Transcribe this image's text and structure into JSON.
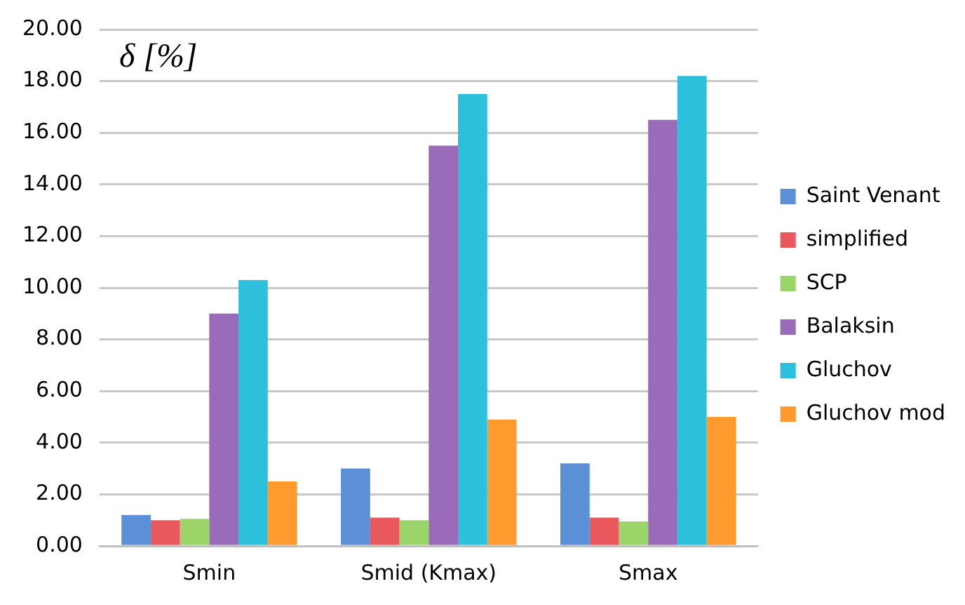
{
  "chart_data": {
    "type": "bar",
    "ylabel": "δ [%]",
    "categories": [
      "Smin",
      "Smid (Kmax)",
      "Smax"
    ],
    "series": [
      {
        "name": "Saint Venant",
        "color": "#5b8fd6",
        "values": [
          1.2,
          3.0,
          3.2
        ]
      },
      {
        "name": "simplified",
        "color": "#e8585c",
        "values": [
          1.0,
          1.1,
          1.1
        ]
      },
      {
        "name": "SCP",
        "color": "#9bd56a",
        "values": [
          1.05,
          1.0,
          0.95
        ]
      },
      {
        "name": "Balaksin",
        "color": "#9a6bb8",
        "values": [
          9.0,
          15.5,
          16.5
        ]
      },
      {
        "name": "Gluchov",
        "color": "#2cc0dd",
        "values": [
          10.3,
          17.5,
          18.2
        ]
      },
      {
        "name": "Gluchov mod",
        "color": "#ff9a2e",
        "values": [
          2.5,
          4.9,
          5.0
        ]
      }
    ],
    "ylim": [
      0,
      20
    ],
    "yticks": [
      {
        "value": 0,
        "label": "0.00"
      },
      {
        "value": 2,
        "label": "2.00"
      },
      {
        "value": 4,
        "label": "4.00"
      },
      {
        "value": 6,
        "label": "6.00"
      },
      {
        "value": 8,
        "label": "8.00"
      },
      {
        "value": 10,
        "label": "10.00"
      },
      {
        "value": 12,
        "label": "12.00"
      },
      {
        "value": 14,
        "label": "14.00"
      },
      {
        "value": 16,
        "label": "16.00"
      },
      {
        "value": 18,
        "label": "18.00"
      },
      {
        "value": 20,
        "label": "20.00"
      }
    ],
    "grid": "y",
    "legend": "right"
  }
}
